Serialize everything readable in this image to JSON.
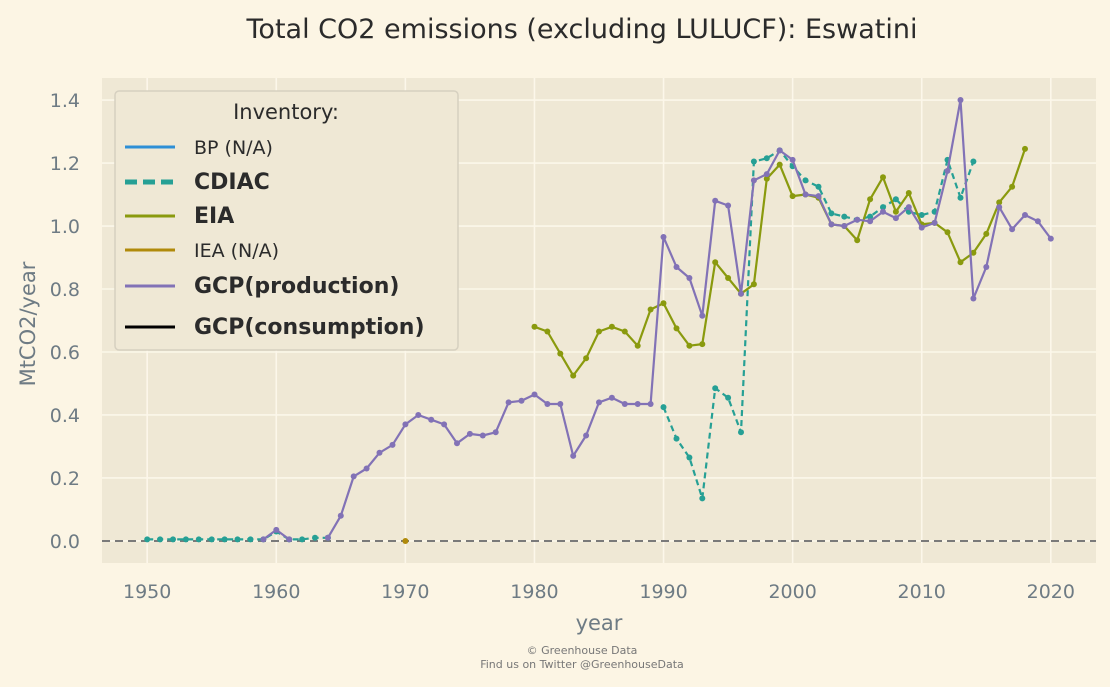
{
  "chart_data": {
    "type": "line",
    "title": "Total CO2 emissions (excluding LULUCF): Eswatini",
    "xlabel": "year",
    "ylabel": "MtCO2/year",
    "xlim": [
      1946.5,
      2023.5
    ],
    "ylim": [
      -0.07,
      1.47
    ],
    "xticks": [
      "1950",
      "1960",
      "1970",
      "1980",
      "1990",
      "2000",
      "2010",
      "2020"
    ],
    "yticks": [
      "0.0",
      "0.2",
      "0.4",
      "0.6",
      "0.8",
      "1.0",
      "1.2",
      "1.4"
    ],
    "grid": true,
    "legend": {
      "title": "Inventory:",
      "placement": "top-left"
    },
    "series": [
      {
        "name": "BP (N/A)",
        "color": "#2e8fd6",
        "style": "solid",
        "bold": false,
        "points": []
      },
      {
        "name": "CDIAC",
        "color": "#26a095",
        "style": "dashed",
        "bold": true,
        "points": [
          [
            1950,
            0.005
          ],
          [
            1951,
            0.005
          ],
          [
            1952,
            0.005
          ],
          [
            1953,
            0.005
          ],
          [
            1954,
            0.005
          ],
          [
            1955,
            0.005
          ],
          [
            1956,
            0.005
          ],
          [
            1957,
            0.005
          ],
          [
            1958,
            0.005
          ],
          [
            1959,
            0.005
          ],
          [
            1960,
            0.03
          ],
          [
            1961,
            0.005
          ],
          [
            1962,
            0.005
          ],
          [
            1963,
            0.01
          ],
          [
            1964,
            0.01
          ],
          [
            1990,
            0.425
          ],
          [
            1991,
            0.325
          ],
          [
            1992,
            0.265
          ],
          [
            1993,
            0.135
          ],
          [
            1994,
            0.485
          ],
          [
            1995,
            0.455
          ],
          [
            1996,
            0.345
          ],
          [
            1997,
            1.205
          ],
          [
            1998,
            1.215
          ],
          [
            1999,
            1.24
          ],
          [
            2000,
            1.19
          ],
          [
            2001,
            1.145
          ],
          [
            2002,
            1.125
          ],
          [
            2003,
            1.04
          ],
          [
            2004,
            1.03
          ],
          [
            2005,
            1.02
          ],
          [
            2006,
            1.03
          ],
          [
            2007,
            1.06
          ],
          [
            2008,
            1.085
          ],
          [
            2009,
            1.045
          ],
          [
            2010,
            1.035
          ],
          [
            2011,
            1.045
          ],
          [
            2012,
            1.21
          ],
          [
            2013,
            1.09
          ],
          [
            2014,
            1.205
          ]
        ]
      },
      {
        "name": "EIA",
        "color": "#8a9a0e",
        "style": "solid",
        "bold": true,
        "points": [
          [
            1980,
            0.68
          ],
          [
            1981,
            0.665
          ],
          [
            1982,
            0.595
          ],
          [
            1983,
            0.525
          ],
          [
            1984,
            0.58
          ],
          [
            1985,
            0.665
          ],
          [
            1986,
            0.68
          ],
          [
            1987,
            0.665
          ],
          [
            1988,
            0.62
          ],
          [
            1989,
            0.735
          ],
          [
            1990,
            0.755
          ],
          [
            1991,
            0.675
          ],
          [
            1992,
            0.62
          ],
          [
            1993,
            0.625
          ],
          [
            1994,
            0.885
          ],
          [
            1995,
            0.835
          ],
          [
            1996,
            0.785
          ],
          [
            1997,
            0.815
          ],
          [
            1998,
            1.15
          ],
          [
            1999,
            1.195
          ],
          [
            2000,
            1.095
          ],
          [
            2001,
            1.1
          ],
          [
            2002,
            1.09
          ],
          [
            2003,
            1.005
          ],
          [
            2004,
            1.0
          ],
          [
            2005,
            0.955
          ],
          [
            2006,
            1.085
          ],
          [
            2007,
            1.155
          ],
          [
            2008,
            1.045
          ],
          [
            2009,
            1.105
          ],
          [
            2010,
            1.005
          ],
          [
            2011,
            1.01
          ],
          [
            2012,
            0.98
          ],
          [
            2013,
            0.885
          ],
          [
            2014,
            0.915
          ],
          [
            2015,
            0.975
          ],
          [
            2016,
            1.075
          ],
          [
            2017,
            1.125
          ],
          [
            2018,
            1.245
          ]
        ]
      },
      {
        "name": "IEA (N/A)",
        "color": "#b08a0a",
        "style": "solid",
        "bold": false,
        "points": [
          [
            1970,
            0.0
          ]
        ]
      },
      {
        "name": "GCP(production)",
        "color": "#8272b6",
        "style": "solid",
        "bold": true,
        "points": [
          [
            1959,
            0.005
          ],
          [
            1960,
            0.035
          ],
          [
            1961,
            0.005
          ],
          [
            1964,
            0.01
          ],
          [
            1965,
            0.08
          ],
          [
            1966,
            0.205
          ],
          [
            1967,
            0.23
          ],
          [
            1968,
            0.28
          ],
          [
            1969,
            0.305
          ],
          [
            1970,
            0.37
          ],
          [
            1971,
            0.4
          ],
          [
            1972,
            0.385
          ],
          [
            1973,
            0.37
          ],
          [
            1974,
            0.31
          ],
          [
            1975,
            0.34
          ],
          [
            1976,
            0.335
          ],
          [
            1977,
            0.345
          ],
          [
            1978,
            0.44
          ],
          [
            1979,
            0.445
          ],
          [
            1980,
            0.465
          ],
          [
            1981,
            0.435
          ],
          [
            1982,
            0.435
          ],
          [
            1983,
            0.27
          ],
          [
            1984,
            0.335
          ],
          [
            1985,
            0.44
          ],
          [
            1986,
            0.455
          ],
          [
            1987,
            0.435
          ],
          [
            1988,
            0.435
          ],
          [
            1989,
            0.435
          ],
          [
            1990,
            0.965
          ],
          [
            1991,
            0.87
          ],
          [
            1992,
            0.835
          ],
          [
            1993,
            0.715
          ],
          [
            1994,
            1.08
          ],
          [
            1995,
            1.065
          ],
          [
            1996,
            0.785
          ],
          [
            1997,
            1.145
          ],
          [
            1998,
            1.165
          ],
          [
            1999,
            1.24
          ],
          [
            2000,
            1.21
          ],
          [
            2001,
            1.1
          ],
          [
            2002,
            1.095
          ],
          [
            2003,
            1.005
          ],
          [
            2004,
            1.0
          ],
          [
            2005,
            1.02
          ],
          [
            2006,
            1.015
          ],
          [
            2007,
            1.045
          ],
          [
            2008,
            1.025
          ],
          [
            2009,
            1.06
          ],
          [
            2010,
            0.995
          ],
          [
            2011,
            1.01
          ],
          [
            2012,
            1.175
          ],
          [
            2013,
            1.4
          ],
          [
            2014,
            0.77
          ],
          [
            2015,
            0.87
          ],
          [
            2016,
            1.06
          ],
          [
            2017,
            0.99
          ],
          [
            2018,
            1.035
          ],
          [
            2019,
            1.015
          ],
          [
            2020,
            0.96
          ]
        ]
      },
      {
        "name": "GCP(consumption)",
        "color": "#000000",
        "style": "solid",
        "bold": true,
        "points": []
      }
    ],
    "zero_line": {
      "y": 0,
      "color": "#7a7a7a",
      "style": "dashed"
    }
  },
  "footer": {
    "line1": "© Greenhouse Data",
    "line2": "Find us on Twitter @GreenhouseData"
  }
}
